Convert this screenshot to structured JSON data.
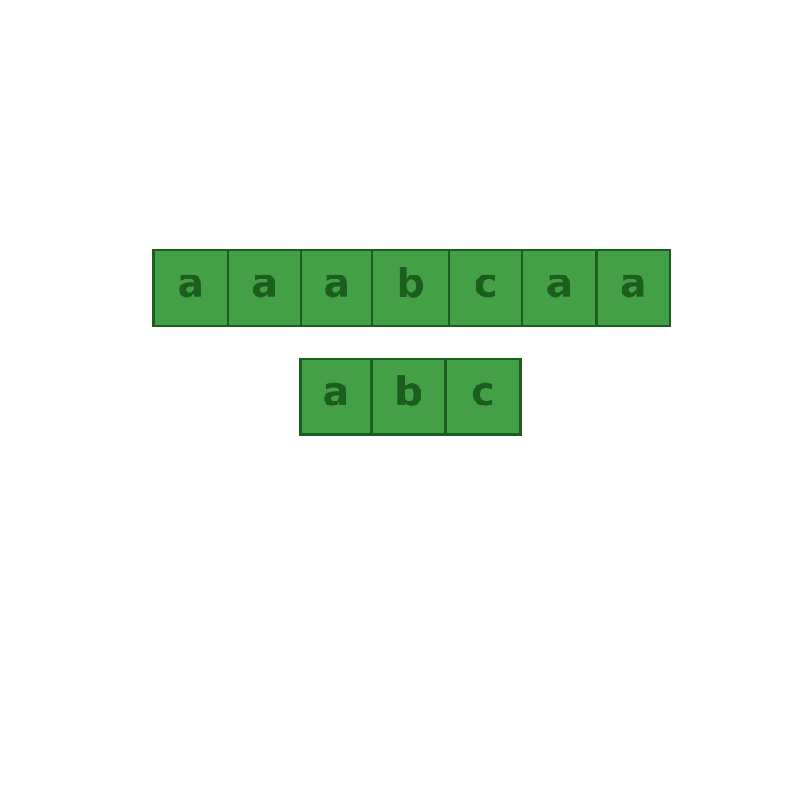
{
  "text_array": [
    "a",
    "a",
    "a",
    "b",
    "c",
    "a",
    "a"
  ],
  "pattern_array": [
    "a",
    "b",
    "c"
  ],
  "colors": {
    "cell_fill": "#43a047",
    "cell_border": "#1b5e20",
    "cell_text": "#1b5e20",
    "background": "#ffffff"
  }
}
